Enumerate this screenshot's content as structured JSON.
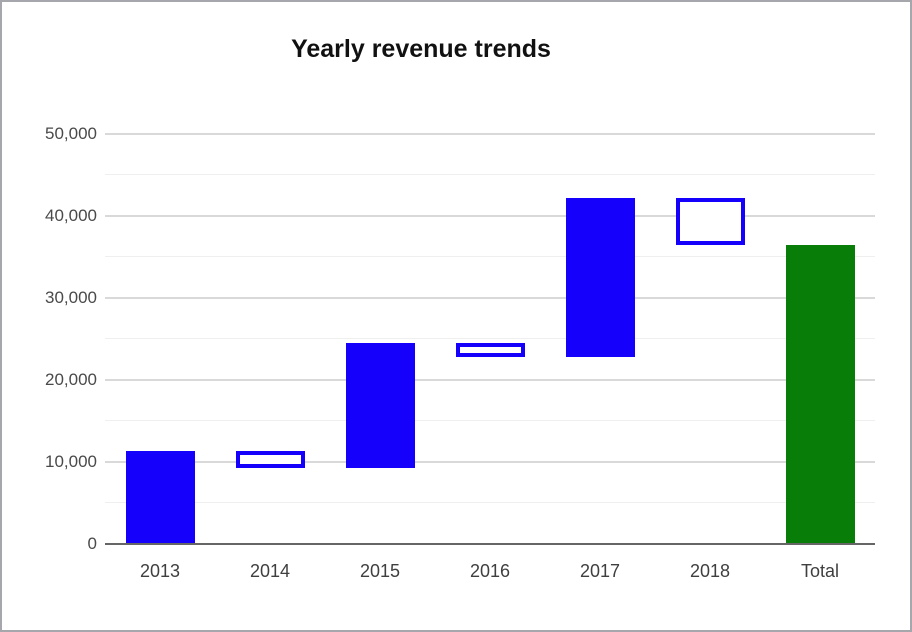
{
  "window": {
    "background": "#ffffff",
    "border_color": "#a6a6ad"
  },
  "chart_data": {
    "type": "waterfall",
    "title": "Yearly revenue trends",
    "categories": [
      "2013",
      "2014",
      "2015",
      "2016",
      "2017",
      "2018",
      "Total"
    ],
    "bars": [
      {
        "category": "2013",
        "start": 0,
        "end": 11300,
        "delta": 11300,
        "kind": "increase",
        "style": "solid-blue"
      },
      {
        "category": "2014",
        "start": 11300,
        "end": 9200,
        "delta": -2100,
        "kind": "decrease",
        "style": "outline-blue"
      },
      {
        "category": "2015",
        "start": 9200,
        "end": 24500,
        "delta": 15300,
        "kind": "increase",
        "style": "solid-blue"
      },
      {
        "category": "2016",
        "start": 24500,
        "end": 22800,
        "delta": -1700,
        "kind": "decrease",
        "style": "outline-blue"
      },
      {
        "category": "2017",
        "start": 22800,
        "end": 42200,
        "delta": 19400,
        "kind": "increase",
        "style": "solid-blue"
      },
      {
        "category": "2018",
        "start": 42200,
        "end": 36500,
        "delta": -5700,
        "kind": "decrease",
        "style": "outline-blue"
      },
      {
        "category": "Total",
        "start": 0,
        "end": 36500,
        "delta": 36500,
        "kind": "total",
        "style": "solid-green"
      }
    ],
    "y_axis": {
      "min": 0,
      "max": 50000,
      "major_step": 10000,
      "minor_step": 5000,
      "tick_labels": [
        "0",
        "10,000",
        "20,000",
        "30,000",
        "40,000",
        "50,000"
      ]
    },
    "x_axis": {
      "tick_labels": [
        "2013",
        "2014",
        "2015",
        "2016",
        "2017",
        "2018",
        "Total"
      ]
    },
    "legend": "none",
    "grid": true,
    "colors": {
      "increase_fill": "#1500fb",
      "decrease_border": "#1500fb",
      "decrease_fill": "#ffffff",
      "total_fill": "#087d08",
      "major_grid": "#d9d9d9",
      "minor_grid": "#efefef",
      "baseline": "#666666",
      "axis_text": "#4a4a4a",
      "title_text": "#111111"
    }
  }
}
